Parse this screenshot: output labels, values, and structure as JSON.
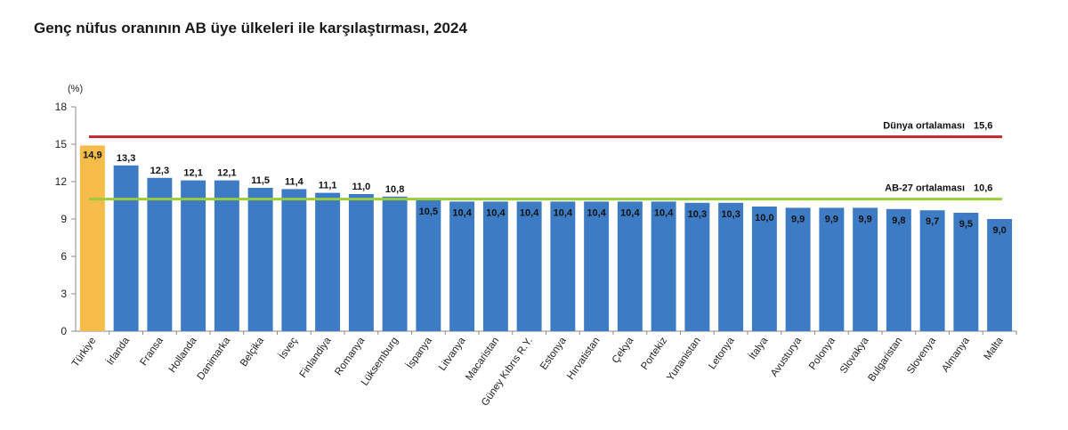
{
  "title": "Genç nüfus oranının AB üye ülkeleri ile karşılaştırması, 2024",
  "chart_data": {
    "type": "bar",
    "title": "Genç nüfus oranının AB üye ülkeleri ile karşılaştırması, 2024",
    "ylabel": "(%)",
    "xlabel": "",
    "ylim": [
      0,
      18
    ],
    "yticks": [
      "0",
      "3",
      "6",
      "9",
      "12",
      "15",
      "18"
    ],
    "grid": false,
    "categories": [
      "Türkiye",
      "İrlanda",
      "Fransa",
      "Hollanda",
      "Danimarka",
      "Belçika",
      "İsveç",
      "Finlandiya",
      "Romanya",
      "Lüksemburg",
      "İspanya",
      "Litvanya",
      "Macaristan",
      "Güney Kıbrıs R.Y.",
      "Estonya",
      "Hırvatistan",
      "Çekya",
      "Portekiz",
      "Yunanistan",
      "Letonya",
      "İtalya",
      "Avusturya",
      "Polonya",
      "Slovakya",
      "Bulgaristan",
      "Slovenya",
      "Almanya",
      "Malta"
    ],
    "values": [
      14.9,
      13.3,
      12.3,
      12.1,
      12.1,
      11.5,
      11.4,
      11.1,
      11.0,
      10.8,
      10.5,
      10.4,
      10.4,
      10.4,
      10.4,
      10.4,
      10.4,
      10.4,
      10.3,
      10.3,
      10.0,
      9.9,
      9.9,
      9.9,
      9.8,
      9.7,
      9.5,
      9.0
    ],
    "value_labels": [
      "14,9",
      "13,3",
      "12,3",
      "12,1",
      "12,1",
      "11,5",
      "11,4",
      "11,1",
      "11,0",
      "10,8",
      "10,5",
      "10,4",
      "10,4",
      "10,4",
      "10,4",
      "10,4",
      "10,4",
      "10,4",
      "10,3",
      "10,3",
      "10,0",
      "9,9",
      "9,9",
      "9,9",
      "9,8",
      "9,7",
      "9,5",
      "9,0"
    ],
    "highlight_category": "Türkiye",
    "colors": {
      "bar": "#3d7cc4",
      "highlight": "#f5bc4a",
      "world_line": "#c0282d",
      "eu_line": "#9ccb3b"
    },
    "reference_lines": [
      {
        "label": "Dünya ortalaması",
        "value": 15.6,
        "value_label": "15,6",
        "color": "#c0282d"
      },
      {
        "label": "AB-27 ortalaması",
        "value": 10.6,
        "value_label": "10,6",
        "color": "#9ccb3b"
      }
    ]
  }
}
